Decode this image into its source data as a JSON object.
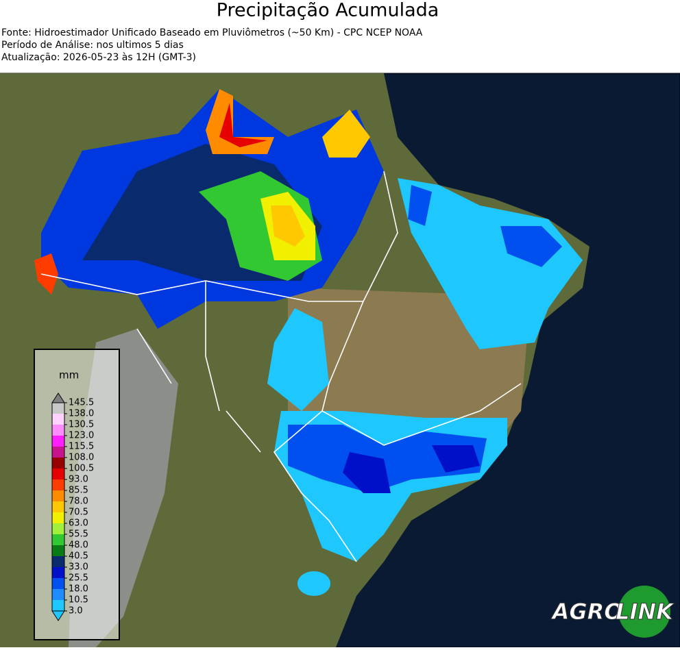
{
  "header": {
    "title": "Precipitação Acumulada",
    "lines": [
      "Fonte: Hidroestimador Unificado Baseado em Pluviômetros (~50 Km) - CPC NCEP NOAA",
      "Período de Análise: nos ultimos 5 dias",
      "Atualização: 2026-05-23 às 12H (GMT-3)"
    ]
  },
  "colorbar": {
    "unit": "mm",
    "ticks": [
      145.5,
      {
        "value": 138,
        "label": "138.0"
      },
      130.5,
      {
        "value": 123,
        "label": "123.0"
      },
      115.5,
      {
        "value": 108,
        "label": "108.0"
      },
      100.5,
      {
        "value": 93,
        "label": "93.0"
      },
      85.5,
      {
        "value": 78,
        "label": "78.0"
      },
      70.5,
      {
        "value": 63,
        "label": "63.0"
      },
      55.5,
      {
        "value": 48,
        "label": "48.0"
      },
      40.5,
      {
        "value": 33,
        "label": "33.0"
      },
      25.5,
      {
        "value": 18,
        "label": "18.0"
      },
      10.5,
      {
        "value": 3,
        "label": "3.0"
      }
    ],
    "colors": [
      "#1ec8ff",
      "#1e8cff",
      "#0050f0",
      "#0010c8",
      "#0a2a6e",
      "#0a7a14",
      "#32c832",
      "#a0f03c",
      "#f0f000",
      "#ffc800",
      "#ff8c00",
      "#ff3c00",
      "#e60000",
      "#960000",
      "#c8148c",
      "#ff1eff",
      "#ff8cff",
      "#ffd2ff",
      "#c8c8c8"
    ],
    "under_color": "#1ec8ff",
    "over_color": "#808080"
  },
  "logo": {
    "left": "AGRO",
    "right": "LINK"
  }
}
